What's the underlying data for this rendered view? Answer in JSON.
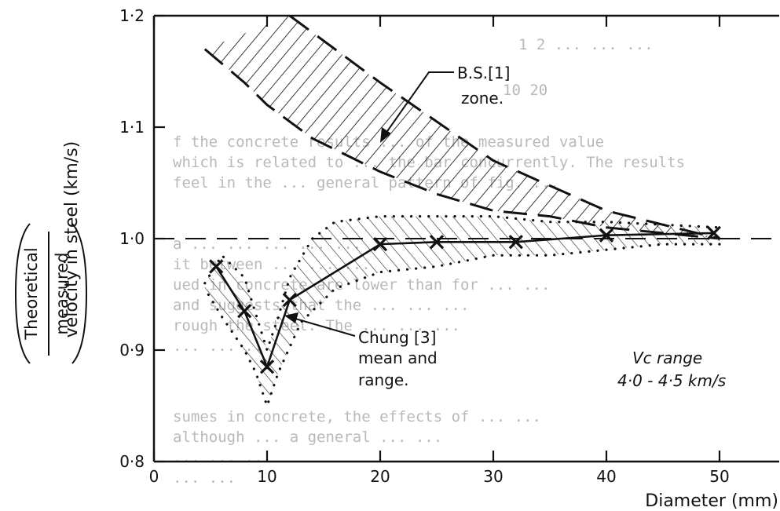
{
  "background_text": [
    "1 2 ...     ...  ...",
    "10       20",
    "f the concrete results ... of the measured value",
    "which is related to ... the bar concurrently. The results",
    "feel in the ... general pattern of fig. ...",
    "a ... ... ... ... ...",
    "it between ... ... ...",
    "ued in concrete are lower than for ... ...",
    "and suggests that the ... ... ...",
    "rough the steel. The ... ... ...",
    "... ... ...",
    "sumes in concrete, the effects of ... ...",
    "although ... a general ... ...",
    "... ... ...",
    "... ..."
  ],
  "chart_data": {
    "type": "line",
    "xlabel": "Diameter (mm)",
    "ylabel": "velocity in steel (km/s)",
    "ylabel_fraction": {
      "numerator": "Theoretical",
      "denominator": "measured"
    },
    "xlim": [
      0,
      55
    ],
    "ylim": [
      0.8,
      1.2
    ],
    "x_ticks": [
      {
        "value": 0,
        "label": "0"
      },
      {
        "value": 10,
        "label": "10"
      },
      {
        "value": 20,
        "label": "20"
      },
      {
        "value": 30,
        "label": "30"
      },
      {
        "value": 40,
        "label": "40"
      },
      {
        "value": 50,
        "label": "50"
      }
    ],
    "y_ticks": [
      {
        "value": 0.8,
        "label": "0·8"
      },
      {
        "value": 0.9,
        "label": "0·9"
      },
      {
        "value": 1.0,
        "label": "1·0"
      },
      {
        "value": 1.1,
        "label": "1·1"
      },
      {
        "value": 1.2,
        "label": "1·2"
      }
    ],
    "reference_line": {
      "y": 1.0,
      "style": "dashed"
    },
    "series": [
      {
        "name": "B.S.[1] zone",
        "kind": "band",
        "fill": "hatched",
        "upper": [
          [
            12,
            1.2
          ],
          [
            20,
            1.14
          ],
          [
            30,
            1.07
          ],
          [
            40,
            1.025
          ],
          [
            50,
            1.0
          ]
        ],
        "lower": [
          [
            4.5,
            1.17
          ],
          [
            8,
            1.14
          ],
          [
            10,
            1.12
          ],
          [
            14,
            1.09
          ],
          [
            20,
            1.06
          ],
          [
            25,
            1.04
          ],
          [
            30,
            1.025
          ],
          [
            35,
            1.02
          ],
          [
            40,
            1.01
          ],
          [
            50,
            1.0
          ]
        ]
      },
      {
        "name": "Chung [3] mean and range",
        "kind": "band",
        "fill": "dotted-hatched",
        "upper": [
          [
            4.5,
            0.96
          ],
          [
            6,
            0.985
          ],
          [
            8,
            0.965
          ],
          [
            10,
            0.9
          ],
          [
            11,
            0.93
          ],
          [
            12,
            0.965
          ],
          [
            14,
            1.0
          ],
          [
            16,
            1.015
          ],
          [
            20,
            1.02
          ],
          [
            25,
            1.02
          ],
          [
            30,
            1.02
          ],
          [
            35,
            1.015
          ],
          [
            40,
            1.015
          ],
          [
            50,
            1.01
          ]
        ],
        "lower": [
          [
            50,
            0.995
          ],
          [
            45,
            0.995
          ],
          [
            40,
            0.99
          ],
          [
            35,
            0.985
          ],
          [
            30,
            0.985
          ],
          [
            25,
            0.975
          ],
          [
            20,
            0.97
          ],
          [
            16,
            0.955
          ],
          [
            13,
            0.925
          ],
          [
            11,
            0.88
          ],
          [
            10,
            0.85
          ],
          [
            9,
            0.88
          ],
          [
            8,
            0.9
          ],
          [
            6,
            0.93
          ],
          [
            4.5,
            0.955
          ]
        ]
      },
      {
        "name": "Chung [3] mean",
        "kind": "line",
        "x": [
          5.5,
          8,
          10,
          12,
          20,
          25,
          32,
          40,
          49.5
        ],
        "y": [
          0.975,
          0.935,
          0.885,
          0.945,
          0.995,
          0.997,
          0.997,
          1.003,
          1.005
        ]
      }
    ],
    "annotations": {
      "bs_label": [
        "B.S.[1]",
        "zone."
      ],
      "chung_label": [
        "Chung [3]",
        "mean and",
        "range."
      ],
      "vc_label": [
        "Vc range",
        "4·0 - 4·5 km/s"
      ]
    }
  }
}
